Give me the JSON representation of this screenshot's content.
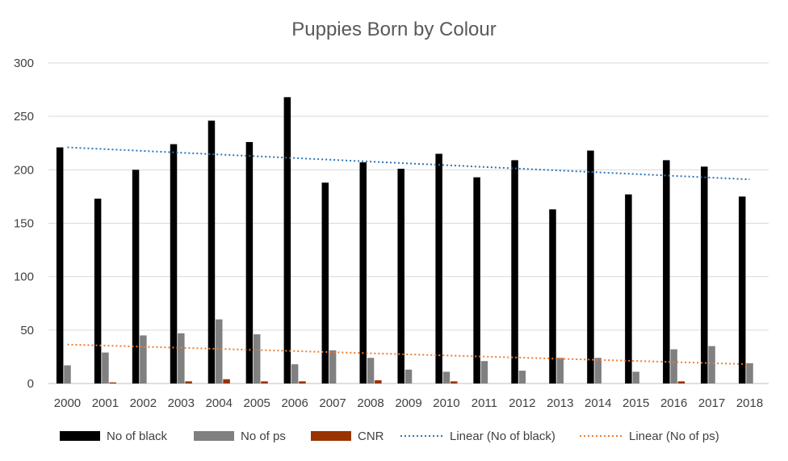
{
  "chart_data": {
    "type": "bar",
    "title": "Puppies Born by Colour",
    "xlabel": "",
    "ylabel": "",
    "ylim": [
      0,
      300
    ],
    "yticks": [
      0,
      50,
      100,
      150,
      200,
      250,
      300
    ],
    "grid": true,
    "legend_position": "bottom",
    "categories": [
      "2000",
      "2001",
      "2002",
      "2003",
      "2004",
      "2005",
      "2006",
      "2007",
      "2008",
      "2009",
      "2010",
      "2011",
      "2012",
      "2013",
      "2014",
      "2015",
      "2016",
      "2017",
      "2018"
    ],
    "series": [
      {
        "name": "No of black",
        "color": "#000000",
        "values": [
          221,
          173,
          200,
          224,
          246,
          226,
          268,
          188,
          207,
          201,
          215,
          193,
          209,
          163,
          218,
          177,
          209,
          203,
          175
        ]
      },
      {
        "name": "No of ps",
        "color": "#808080",
        "values": [
          17,
          29,
          45,
          47,
          60,
          46,
          18,
          31,
          24,
          13,
          11,
          21,
          12,
          24,
          24,
          11,
          32,
          35,
          19
        ]
      },
      {
        "name": "CNR",
        "color": "#993300",
        "values": [
          0,
          1,
          0,
          2,
          4,
          2,
          2,
          0,
          3,
          0,
          2,
          0,
          0,
          0,
          0,
          0,
          2,
          0,
          0
        ]
      }
    ],
    "trendlines": [
      {
        "name": "Linear (No of black)",
        "color": "#2e75b6",
        "start": 221,
        "end": 191
      },
      {
        "name": "Linear (No of ps)",
        "color": "#ed7d31",
        "start": 36.5,
        "end": 18
      }
    ]
  }
}
